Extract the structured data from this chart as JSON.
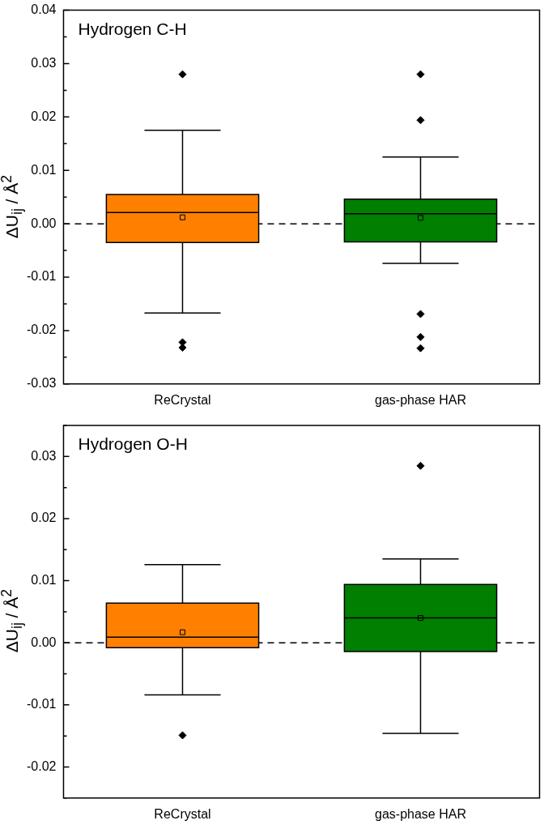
{
  "chart_data": [
    {
      "type": "box",
      "ylabel": "ΔU$_{ij}$ / Å$^{2}$",
      "annotations": [
        "Hydrogen C-H"
      ],
      "categories": [
        "ReCrystal",
        "gas-phase HAR"
      ],
      "colors": [
        "#ff8000",
        "#007f00"
      ],
      "boxes": [
        {
          "low": -0.0167,
          "q1": -0.0035,
          "median": 0.0021,
          "q3": 0.0055,
          "high": 0.0175,
          "mean": 0.0012,
          "outliers": [
            0.028,
            -0.0222,
            -0.0232
          ]
        },
        {
          "low": -0.0074,
          "q1": -0.0034,
          "median": 0.0019,
          "q3": 0.0046,
          "high": 0.0125,
          "mean": 0.0011,
          "outliers": [
            0.028,
            0.0194,
            -0.0169,
            -0.0212,
            -0.0233
          ]
        }
      ],
      "ylim": [
        -0.03,
        0.04
      ],
      "yticks": [
        {
          "value": -0.03,
          "label": "-0.03"
        },
        {
          "value": -0.025,
          "label": null
        },
        {
          "value": -0.02,
          "label": "-0.02"
        },
        {
          "value": -0.015,
          "label": null
        },
        {
          "value": -0.01,
          "label": "-0.01"
        },
        {
          "value": -0.005,
          "label": null
        },
        {
          "value": 0,
          "label": "0.00"
        },
        {
          "value": 0.005,
          "label": null
        },
        {
          "value": 0.01,
          "label": "0.01"
        },
        {
          "value": 0.015,
          "label": null
        },
        {
          "value": 0.02,
          "label": "0.02"
        },
        {
          "value": 0.025,
          "label": null
        },
        {
          "value": 0.03,
          "label": "0.03"
        },
        {
          "value": 0.035,
          "label": null
        },
        {
          "value": 0.04,
          "label": "0.04"
        }
      ],
      "ref_lines": [
        {
          "axis": "y",
          "value": 0,
          "line_style": "dashed",
          "color": "#000000"
        }
      ],
      "marker": "diamond"
    },
    {
      "type": "box",
      "ylabel": "ΔU$_{ij}$ / Å$^{2}$",
      "annotations": [
        "Hydrogen O-H"
      ],
      "categories": [
        "ReCrystal",
        "gas-phase HAR"
      ],
      "colors": [
        "#ff8000",
        "#007f00"
      ],
      "boxes": [
        {
          "low": -0.0084,
          "q1": -0.0008,
          "median": 0.0009,
          "q3": 0.0064,
          "high": 0.0126,
          "mean": 0.0017,
          "outliers": [
            -0.0149
          ]
        },
        {
          "low": -0.0146,
          "q1": -0.0014,
          "median": 0.004,
          "q3": 0.0094,
          "high": 0.0135,
          "mean": 0.004,
          "outliers": [
            0.0285
          ]
        }
      ],
      "ylim": [
        -0.025,
        0.035
      ],
      "yticks": [
        {
          "value": -0.025,
          "label": null
        },
        {
          "value": -0.02,
          "label": "-0.02"
        },
        {
          "value": -0.015,
          "label": null
        },
        {
          "value": -0.01,
          "label": "-0.01"
        },
        {
          "value": -0.005,
          "label": null
        },
        {
          "value": 0,
          "label": "0.00"
        },
        {
          "value": 0.005,
          "label": null
        },
        {
          "value": 0.01,
          "label": "0.01"
        },
        {
          "value": 0.015,
          "label": null
        },
        {
          "value": 0.02,
          "label": "0.02"
        },
        {
          "value": 0.025,
          "label": null
        },
        {
          "value": 0.03,
          "label": "0.03"
        },
        {
          "value": 0.035,
          "label": null
        }
      ],
      "ref_lines": [
        {
          "axis": "y",
          "value": 0,
          "line_style": "dashed",
          "color": "#000000"
        }
      ],
      "marker": "diamond"
    }
  ]
}
